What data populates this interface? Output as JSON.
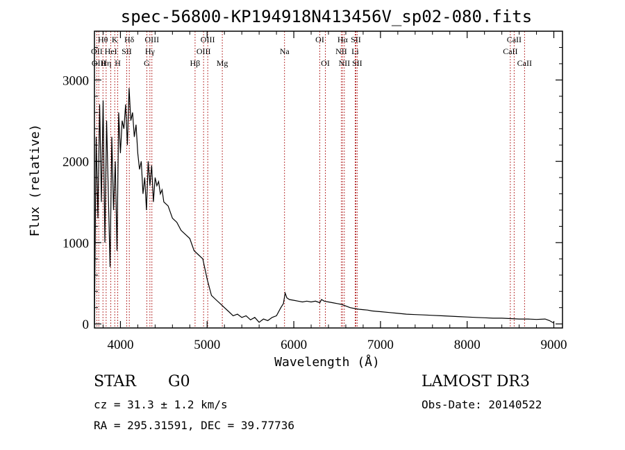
{
  "chart_data": {
    "type": "line",
    "title": "spec-56800-KP194918N413456V_sp02-080.fits",
    "xlabel": "Wavelength (Å)",
    "ylabel": "Flux (relative)",
    "xlim": [
      3700,
      9100
    ],
    "ylim": [
      -50,
      3600
    ],
    "xticks": [
      4000,
      5000,
      6000,
      7000,
      8000,
      9000
    ],
    "yticks": [
      0,
      1000,
      2000,
      3000
    ],
    "grid": false,
    "series": [
      {
        "x": [
          3700,
          3720,
          3740,
          3760,
          3780,
          3800,
          3820,
          3840,
          3860,
          3880,
          3900,
          3920,
          3940,
          3960,
          3980,
          4000,
          4020,
          4040,
          4060,
          4080,
          4100,
          4120,
          4140,
          4160,
          4180,
          4200,
          4220,
          4240,
          4260,
          4280,
          4300,
          4320,
          4340,
          4360,
          4380,
          4400,
          4420,
          4440,
          4460,
          4480,
          4500,
          4550,
          4600,
          4650,
          4700,
          4750,
          4800,
          4850,
          4900,
          4950,
          5000,
          5050,
          5100,
          5150,
          5200,
          5250,
          5300,
          5350,
          5400,
          5450,
          5500,
          5550,
          5600,
          5650,
          5700,
          5750,
          5800,
          5850,
          5880,
          5900,
          5920,
          5950,
          6000,
          6050,
          6100,
          6150,
          6200,
          6250,
          6300,
          6320,
          6350,
          6400,
          6450,
          6500,
          6550,
          6600,
          6650,
          6700,
          6750,
          6800,
          6850,
          6900,
          6950,
          7000,
          7100,
          7200,
          7300,
          7400,
          7500,
          7600,
          7700,
          7800,
          7900,
          8000,
          8100,
          8200,
          8300,
          8400,
          8500,
          8600,
          8700,
          8800,
          8900,
          8950,
          9000
        ],
        "values": [
          0,
          2300,
          1300,
          2700,
          1500,
          2750,
          1000,
          2500,
          1600,
          700,
          2300,
          1400,
          2000,
          900,
          2600,
          2100,
          2500,
          2400,
          2700,
          2200,
          2900,
          2500,
          2600,
          2300,
          2450,
          2100,
          1900,
          2000,
          1600,
          1800,
          1400,
          2000,
          1700,
          1950,
          1500,
          1800,
          1700,
          1750,
          1600,
          1650,
          1500,
          1450,
          1300,
          1250,
          1150,
          1100,
          1050,
          900,
          850,
          800,
          550,
          350,
          300,
          250,
          200,
          150,
          100,
          120,
          80,
          100,
          50,
          80,
          20,
          60,
          40,
          80,
          100,
          200,
          250,
          380,
          320,
          300,
          290,
          280,
          270,
          280,
          270,
          280,
          260,
          300,
          280,
          270,
          260,
          250,
          240,
          220,
          200,
          190,
          180,
          175,
          170,
          160,
          155,
          150,
          140,
          130,
          120,
          115,
          110,
          105,
          100,
          95,
          90,
          85,
          80,
          75,
          70,
          70,
          65,
          60,
          60,
          55,
          60,
          40,
          10
        ]
      }
    ],
    "lines": [
      {
        "x": 3727,
        "label": "OII",
        "row": 1
      },
      {
        "x": 3750,
        "label": "OIII",
        "row": 2
      },
      {
        "x": 3798,
        "label": "Hθ",
        "row": 0
      },
      {
        "x": 3835,
        "label": "Hη",
        "row": 2
      },
      {
        "x": 3889,
        "label": "HeI",
        "row": 1
      },
      {
        "x": 3934,
        "label": "K",
        "row": 0
      },
      {
        "x": 3969,
        "label": "H",
        "row": 2
      },
      {
        "x": 4072,
        "label": "SII",
        "row": 1
      },
      {
        "x": 4102,
        "label": "Hδ",
        "row": 0
      },
      {
        "x": 4304,
        "label": "G",
        "row": 2
      },
      {
        "x": 4340,
        "label": "Hγ",
        "row": 1
      },
      {
        "x": 4363,
        "label": "OIII",
        "row": 0
      },
      {
        "x": 4861,
        "label": "Hβ",
        "row": 2
      },
      {
        "x": 4959,
        "label": "OIII",
        "row": 1
      },
      {
        "x": 5007,
        "label": "OIII",
        "row": 0
      },
      {
        "x": 5175,
        "label": "Mg",
        "row": 2
      },
      {
        "x": 5893,
        "label": "Na",
        "row": 1
      },
      {
        "x": 6300,
        "label": "OI",
        "row": 0
      },
      {
        "x": 6364,
        "label": "OI",
        "row": 2
      },
      {
        "x": 6548,
        "label": "NII",
        "row": 1
      },
      {
        "x": 6563,
        "label": "Hα",
        "row": 0
      },
      {
        "x": 6583,
        "label": "NII",
        "row": 2
      },
      {
        "x": 6708,
        "label": "Li",
        "row": 1
      },
      {
        "x": 6716,
        "label": "SII",
        "row": 0
      },
      {
        "x": 6731,
        "label": "SII",
        "row": 2
      },
      {
        "x": 8498,
        "label": "CaII",
        "row": 1
      },
      {
        "x": 8542,
        "label": "CaII",
        "row": 0
      },
      {
        "x": 8662,
        "label": "CaII",
        "row": 2
      }
    ]
  },
  "footer": {
    "object_type": "STAR",
    "subclass": "G0",
    "survey": "LAMOST DR3",
    "redshift": "cz = 31.3 ± 1.2 km/s",
    "obs_date": "Obs-Date: 20140522",
    "coords": "RA = 295.31591, DEC =  39.77736"
  }
}
